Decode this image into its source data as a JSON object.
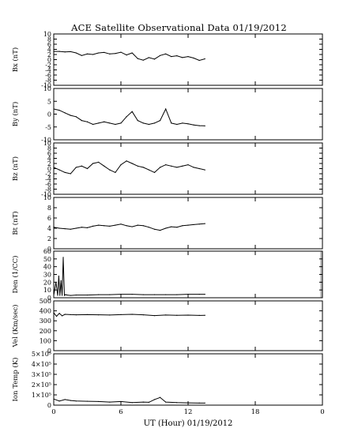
{
  "title": "ACE Satellite Observational Data   01/19/2012",
  "xlabel": "UT (Hour)  01/19/2012",
  "x_tick_labels": [
    "0",
    "6",
    "12",
    "18",
    "0"
  ],
  "colors": {
    "line": "#000000",
    "frame": "#000000",
    "gap_band": "#bfbfbf",
    "background": "#ffffff"
  },
  "chart_data": [
    {
      "type": "line",
      "ylabel": "Bx (nT)",
      "ylim": [
        -10,
        10
      ],
      "yticks": [
        -10,
        -8,
        -6,
        -4,
        -2,
        0,
        2,
        4,
        6,
        8,
        10
      ],
      "ytick_labels": [
        "-10",
        "-8",
        "-6",
        "-4",
        "-2",
        "0",
        "2",
        "4",
        "6",
        "8",
        "10"
      ],
      "xlim": [
        0,
        24
      ],
      "x": [
        0,
        0.5,
        1,
        1.5,
        2,
        2.5,
        3,
        3.5,
        4,
        4.5,
        5,
        5.5,
        6,
        6.5,
        7,
        7.5,
        8,
        8.5,
        9,
        9.5,
        10,
        10.5,
        11,
        11.5,
        12,
        12.5,
        13,
        13.5
      ],
      "values": [
        3.2,
        3.2,
        3.0,
        3.1,
        2.6,
        1.6,
        2.2,
        2.0,
        2.6,
        2.8,
        2.2,
        2.4,
        2.9,
        1.8,
        2.6,
        0.4,
        -0.2,
        0.8,
        0.2,
        1.6,
        2.2,
        1.2,
        1.5,
        0.8,
        1.2,
        0.6,
        -0.3,
        0.3
      ]
    },
    {
      "type": "line",
      "ylabel": "By (nT)",
      "ylim": [
        -10,
        10
      ],
      "yticks": [
        -10,
        -5,
        0,
        5,
        10
      ],
      "ytick_labels": [
        "-10",
        "-5",
        "0",
        "5",
        "10"
      ],
      "xlim": [
        0,
        24
      ],
      "x": [
        0,
        0.5,
        1,
        1.5,
        2,
        2.5,
        3,
        3.5,
        4,
        4.5,
        5,
        5.5,
        6,
        6.5,
        7,
        7.5,
        8,
        8.5,
        9,
        9.5,
        10,
        10.5,
        11,
        11.5,
        12,
        12.5,
        13,
        13.5
      ],
      "values": [
        2.0,
        1.5,
        0.5,
        -0.5,
        -1.0,
        -2.5,
        -3.0,
        -4.0,
        -3.5,
        -3.0,
        -3.5,
        -4.0,
        -3.5,
        -1.0,
        1.0,
        -2.5,
        -3.5,
        -4.0,
        -3.5,
        -2.5,
        2.0,
        -3.5,
        -4.0,
        -3.5,
        -3.8,
        -4.2,
        -4.5,
        -4.6
      ]
    },
    {
      "type": "line",
      "ylabel": "Bz (nT)",
      "ylim": [
        -10,
        10
      ],
      "yticks": [
        -10,
        -8,
        -6,
        -4,
        -2,
        0,
        2,
        4,
        6,
        8,
        10
      ],
      "ytick_labels": [
        "-10",
        "-8",
        "-6",
        "-4",
        "-2",
        "0",
        "2",
        "4",
        "6",
        "8",
        "10"
      ],
      "xlim": [
        0,
        24
      ],
      "x": [
        0,
        0.5,
        1,
        1.5,
        2,
        2.5,
        3,
        3.5,
        4,
        4.5,
        5,
        5.5,
        6,
        6.5,
        7,
        7.5,
        8,
        8.5,
        9,
        9.5,
        10,
        10.5,
        11,
        11.5,
        12,
        12.5,
        13,
        13.5
      ],
      "values": [
        0.5,
        -0.5,
        -1.5,
        -2.0,
        0.5,
        1.0,
        0.0,
        2.0,
        2.5,
        1.0,
        -0.5,
        -1.5,
        1.5,
        3.0,
        2.0,
        1.0,
        0.5,
        -0.5,
        -1.5,
        0.5,
        1.5,
        1.0,
        0.5,
        1.0,
        1.5,
        0.5,
        0.0,
        -0.5
      ]
    },
    {
      "type": "line",
      "ylabel": "Bt (nT)",
      "ylim": [
        0,
        10
      ],
      "yticks": [
        0,
        2,
        4,
        6,
        8,
        10
      ],
      "ytick_labels": [
        "0",
        "2",
        "4",
        "6",
        "8",
        "10"
      ],
      "xlim": [
        0,
        24
      ],
      "x": [
        0,
        0.5,
        1,
        1.5,
        2,
        2.5,
        3,
        3.5,
        4,
        4.5,
        5,
        5.5,
        6,
        6.5,
        7,
        7.5,
        8,
        8.5,
        9,
        9.5,
        10,
        10.5,
        11,
        11.5,
        12,
        12.5,
        13,
        13.5
      ],
      "values": [
        4.2,
        4.0,
        3.9,
        3.8,
        4.0,
        4.2,
        4.1,
        4.4,
        4.6,
        4.5,
        4.4,
        4.6,
        4.8,
        4.5,
        4.3,
        4.6,
        4.5,
        4.2,
        3.8,
        3.6,
        4.0,
        4.3,
        4.2,
        4.5,
        4.6,
        4.7,
        4.8,
        4.9
      ]
    },
    {
      "type": "line",
      "ylabel": "Den (1/CC)",
      "ylim": [
        0,
        60
      ],
      "yticks": [
        0,
        10,
        20,
        30,
        40,
        50,
        60
      ],
      "ytick_labels": [
        "0",
        "10",
        "20",
        "30",
        "40",
        "50",
        "60"
      ],
      "xlim": [
        0,
        24
      ],
      "x": [
        0,
        0.2,
        0.35,
        0.45,
        0.55,
        0.65,
        0.75,
        0.85,
        0.95,
        1.05,
        1.2,
        1.5,
        2,
        3,
        4,
        5,
        6,
        7,
        8,
        9,
        10,
        11,
        12,
        13,
        13.5
      ],
      "values": [
        3,
        20,
        3,
        28,
        3,
        22,
        3,
        52,
        3,
        4,
        3.5,
        3,
        3.5,
        3.5,
        4,
        4,
        4.5,
        4.5,
        4,
        4,
        4,
        4,
        4.5,
        4.5,
        4.5
      ],
      "data_gap_hours": [
        23.8,
        24
      ]
    },
    {
      "type": "line",
      "ylabel": "Vel (Km/sec)",
      "ylim": [
        0,
        500
      ],
      "yticks": [
        0,
        100,
        200,
        300,
        400,
        500
      ],
      "ytick_labels": [
        "0",
        "100",
        "200",
        "300",
        "400",
        "500"
      ],
      "xlim": [
        0,
        24
      ],
      "x": [
        0,
        0.25,
        0.5,
        0.75,
        1,
        1.5,
        2,
        3,
        4,
        5,
        6,
        7,
        8,
        9,
        10,
        11,
        12,
        13,
        13.5
      ],
      "values": [
        380,
        345,
        375,
        350,
        365,
        362,
        360,
        362,
        360,
        358,
        362,
        365,
        360,
        352,
        358,
        355,
        357,
        354,
        355
      ]
    },
    {
      "type": "line",
      "ylabel": "Ion Temp (K)",
      "ylim": [
        0,
        500000
      ],
      "yticks": [
        0,
        100000,
        200000,
        300000,
        400000,
        500000
      ],
      "ytick_labels": [
        "0",
        "1×10⁵",
        "2×10⁵",
        "3×10⁵",
        "4×10⁵",
        "5×10⁵"
      ],
      "xlim": [
        0,
        24
      ],
      "x": [
        0,
        0.5,
        1,
        1.5,
        2,
        3,
        4,
        5,
        6,
        7,
        8,
        8.5,
        9,
        9.5,
        10,
        11,
        12,
        13,
        13.5
      ],
      "values": [
        60000,
        40000,
        55000,
        45000,
        40000,
        38000,
        35000,
        30000,
        35000,
        25000,
        30000,
        28000,
        55000,
        75000,
        30000,
        25000,
        22000,
        20000,
        20000
      ]
    }
  ]
}
